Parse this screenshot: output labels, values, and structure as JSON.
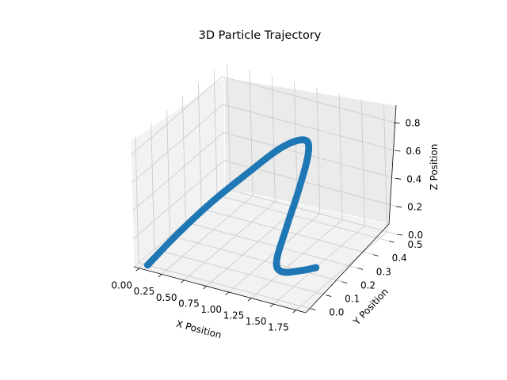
{
  "chart_data": {
    "type": "scatter",
    "projection": "3d",
    "title": "3D Particle Trajectory",
    "xlabel": "X Position",
    "ylabel": "Y Position",
    "zlabel": "Z Position",
    "xlim": [
      -0.06,
      1.86
    ],
    "ylim": [
      -0.03,
      0.55
    ],
    "zlim": [
      0.0,
      0.9
    ],
    "xticks": [
      "0.00",
      "0.25",
      "0.50",
      "0.75",
      "1.00",
      "1.25",
      "1.50",
      "1.75"
    ],
    "yticks": [
      "0.0",
      "0.1",
      "0.2",
      "0.3",
      "0.4",
      "0.5"
    ],
    "zticks": [
      "0.0",
      "0.2",
      "0.4",
      "0.6",
      "0.8"
    ],
    "grid": true,
    "marker_color": "#1f77b4",
    "series": [
      {
        "keypoints": {
          "x": [
            0.04,
            0.3,
            0.6,
            0.9,
            1.15,
            1.3,
            1.32,
            1.28,
            1.25,
            1.24,
            1.28,
            1.4,
            1.5
          ],
          "y": [
            0.0,
            0.04,
            0.09,
            0.15,
            0.24,
            0.3,
            0.31,
            0.27,
            0.2,
            0.14,
            0.15,
            0.2,
            0.24
          ],
          "z": [
            0.0,
            0.22,
            0.45,
            0.65,
            0.8,
            0.82,
            0.72,
            0.5,
            0.28,
            0.1,
            0.02,
            0.0,
            0.0
          ]
        }
      }
    ]
  }
}
